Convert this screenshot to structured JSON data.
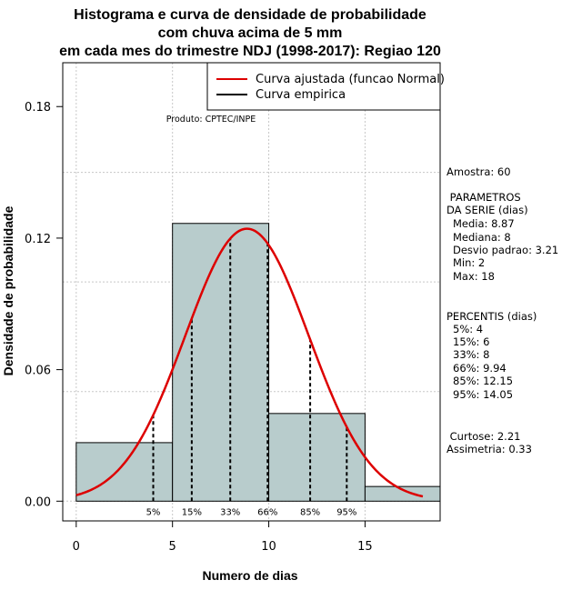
{
  "chart_data": {
    "type": "bar",
    "title_lines": [
      "Histograma e curva de densidade de probabilidade",
      "com chuva acima de 5 mm",
      "em cada mes do trimestre NDJ (1998-2017): Regiao 120"
    ],
    "xlabel": "Numero de dias",
    "ylabel": "Densidade de probabilidade",
    "xlim": [
      -0.7,
      18.9
    ],
    "ylim": [
      -0.009,
      0.2
    ],
    "x_ticks": [
      0,
      5,
      10,
      15
    ],
    "x_tick_labels": [
      "0",
      "5",
      "10",
      "15"
    ],
    "y_ticks": [
      0.0,
      0.06,
      0.12,
      0.18
    ],
    "y_tick_labels": [
      "0.00",
      "0.06",
      "0.12",
      "0.18"
    ],
    "grid": true,
    "histogram": [
      {
        "x0": 0,
        "x1": 5,
        "density": 0.0267
      },
      {
        "x0": 5,
        "x1": 10,
        "density": 0.1267
      },
      {
        "x0": 10,
        "x1": 15,
        "density": 0.04
      },
      {
        "x0": 15,
        "x1": 20,
        "density": 0.0067
      }
    ],
    "normal_fit": {
      "mean": 8.87,
      "sd": 3.21,
      "x_range": [
        0,
        18
      ],
      "color": "#dd0000"
    },
    "percentiles": [
      {
        "label": "5%",
        "x": 4
      },
      {
        "label": "15%",
        "x": 6
      },
      {
        "label": "33%",
        "x": 8
      },
      {
        "label": "66%",
        "x": 9.94
      },
      {
        "label": "85%",
        "x": 12.15
      },
      {
        "label": "95%",
        "x": 14.05
      }
    ],
    "legend": {
      "position": "top-right",
      "entries": [
        {
          "label": "Curva ajustada (funcao Normal)",
          "color": "#dd0000"
        },
        {
          "label": "Curva empirica",
          "color": "#000000"
        }
      ]
    },
    "credit": "Produto: CPTEC/INPE",
    "bar_fill": "#b8cccc"
  },
  "side_panel": {
    "sample": "Amostra: 60",
    "params_heading_1": " PARAMETROS",
    "params_heading_2": "DA SERIE (dias)",
    "params": [
      "Media: 8.87",
      "Mediana: 8",
      "Desvio padrao: 3.21",
      "Min: 2",
      "Max: 18"
    ],
    "percentis_heading": "PERCENTIS (dias)",
    "percentis": [
      "5%: 4",
      "15%: 6",
      "33%: 8",
      "66%: 9.94",
      "85%: 12.15",
      "95%: 14.05"
    ],
    "curtose": " Curtose: 2.21",
    "assimetria": "Assimetria: 0.33"
  }
}
